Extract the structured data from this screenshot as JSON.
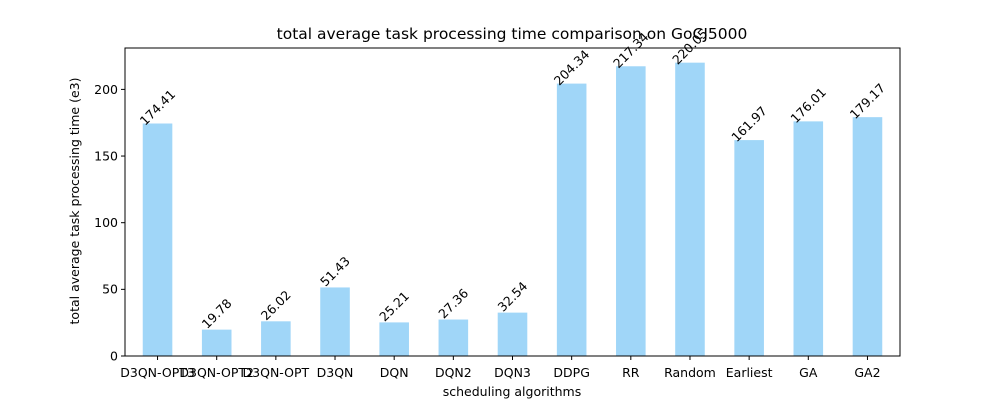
{
  "chart_data": {
    "type": "bar",
    "title": "total average task processing time comparison on GoCJ5000",
    "xlabel": "scheduling algorithms",
    "ylabel": "total average task processing time (e3)",
    "categories": [
      "D3QN-OPT3",
      "D3QN-OPT2",
      "D3QN-OPT",
      "D3QN",
      "DQN",
      "DQN2",
      "DQN3",
      "DDPG",
      "RR",
      "Random",
      "Earliest",
      "GA",
      "GA2"
    ],
    "values": [
      174.41,
      19.78,
      26.02,
      51.43,
      25.21,
      27.36,
      32.54,
      204.34,
      217.34,
      220.05,
      161.97,
      176.01,
      179.17
    ],
    "data_labels": [
      "174.41",
      "19.78",
      "26.02",
      "51.43",
      "25.21",
      "27.36",
      "32.54",
      "204.34",
      "217.34",
      "220.05",
      "161.97",
      "176.01",
      "179.17"
    ],
    "ylim": [
      0,
      231.05
    ],
    "yticks": [
      0,
      50,
      100,
      150,
      200
    ],
    "grid": false,
    "bar_color": "#a0d6f8"
  }
}
